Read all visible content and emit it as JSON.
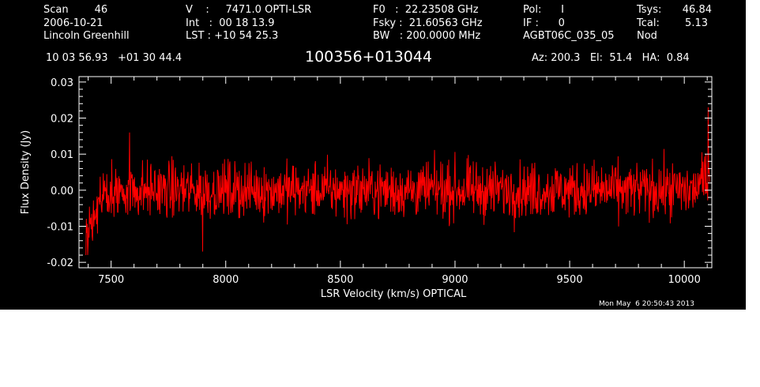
{
  "header": {
    "col1": [
      "Scan        46",
      "2006-10-21",
      "Lincoln Greenhill"
    ],
    "col2": [
      "V    :     7471.0 OPTI-LSR",
      "Int   :  00 18 13.9",
      "LST : +10 54 25.3"
    ],
    "col3": [
      "F0   :  22.23508 GHz",
      "Fsky :  21.60563 GHz",
      "BW   : 200.0000 MHz"
    ],
    "col4": [
      "Pol:      I",
      "IF :      0",
      "AGBT06C_035_05"
    ],
    "col5_labels": [
      "Tsys:",
      "Tcal:",
      "Nod"
    ],
    "col5_values": [
      "46.84",
      "5.13",
      ""
    ],
    "coords": "10 03 56.93   +01 30 44.4",
    "source": "100356+013044",
    "pointing": "Az: 200.3   El:  51.4   HA:  0.84",
    "timestamp": "Mon May  6 20:50:43 2013"
  },
  "colors": {
    "background": "#000000",
    "axes": "#ffffff",
    "series": "#ff0000"
  },
  "chart_data": {
    "type": "line",
    "title": "100356+013044",
    "xlabel": "LSR Velocity (km/s) OPTICAL",
    "ylabel": "Flux Density (Jy)",
    "xlim": [
      7360,
      10120
    ],
    "ylim": [
      -0.0215,
      0.0315
    ],
    "xticks": [
      7500,
      8000,
      8500,
      9000,
      9500,
      10000
    ],
    "xtick_labels": [
      "7500",
      "8000",
      "8500",
      "9000",
      "9500",
      "10000"
    ],
    "yticks": [
      -0.02,
      -0.01,
      0.0,
      0.01,
      0.02,
      0.03
    ],
    "ytick_labels": [
      "-0.02",
      "-0.01",
      "0.00",
      "0.01",
      "0.02",
      "0.03"
    ],
    "grid": false,
    "series": [
      {
        "x_start": 7390,
        "x_end": 10110,
        "n_points": 1400,
        "noise_rms_jy": 0.0045,
        "features": [
          {
            "x": 7390,
            "y": -0.018
          },
          {
            "x": 7420,
            "y": -0.014
          },
          {
            "x": 7450,
            "y": -0.004
          },
          {
            "x": 7580,
            "y": 0.016
          },
          {
            "x": 7900,
            "y": -0.017
          },
          {
            "x": 10105,
            "y": 0.023
          }
        ]
      }
    ]
  }
}
